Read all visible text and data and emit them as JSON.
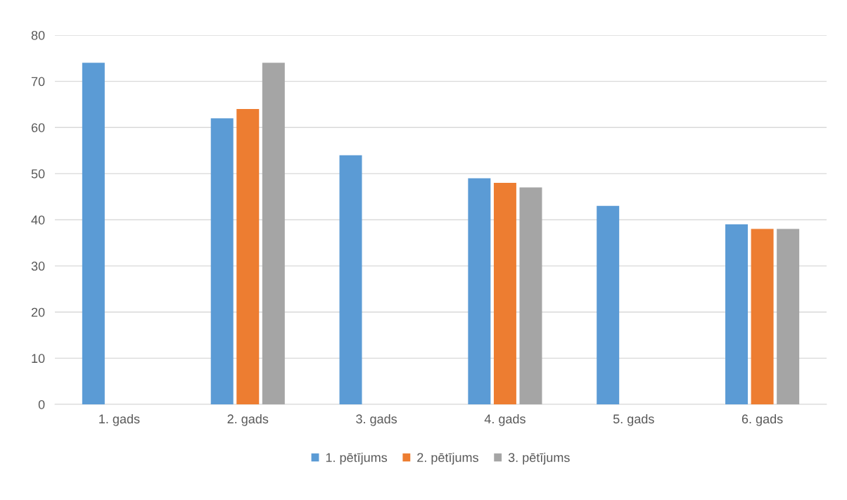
{
  "chart_data": {
    "type": "bar",
    "categories": [
      "1. gads",
      "2. gads",
      "3. gads",
      "4. gads",
      "5. gads",
      "6. gads"
    ],
    "series": [
      {
        "name": "1. pētījums",
        "color": "#5b9bd5",
        "values": [
          74,
          62,
          54,
          49,
          43,
          39
        ]
      },
      {
        "name": "2. pētījums",
        "color": "#ed7d31",
        "values": [
          null,
          64,
          null,
          48,
          null,
          38
        ]
      },
      {
        "name": "3. pētījums",
        "color": "#a5a5a5",
        "values": [
          null,
          74,
          null,
          47,
          null,
          38
        ]
      }
    ],
    "ylim": [
      0,
      80
    ],
    "yticks": [
      0,
      10,
      20,
      30,
      40,
      50,
      60,
      70,
      80
    ],
    "grid": "y",
    "legend": "bottom"
  }
}
